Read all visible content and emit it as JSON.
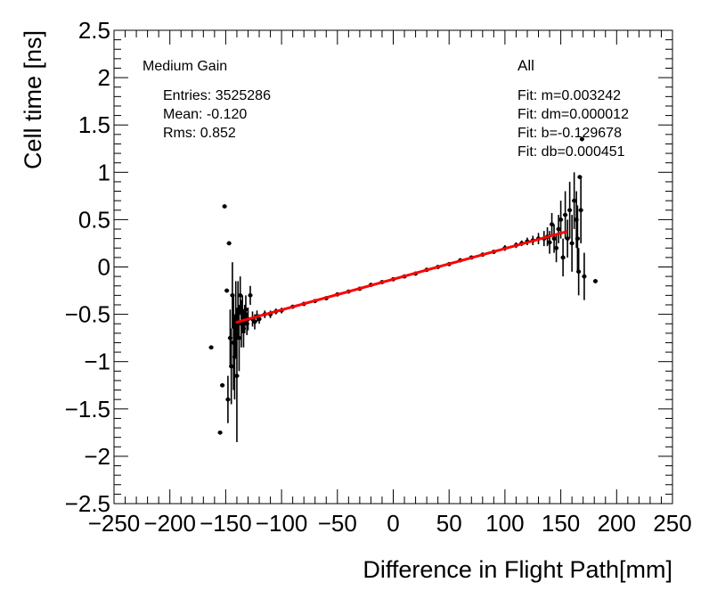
{
  "chart_data": {
    "type": "scatter",
    "title": "",
    "xlabel": "Difference in Flight Path[mm]",
    "ylabel": "Cell time [ns]",
    "xlim": [
      -250,
      250
    ],
    "ylim": [
      -2.5,
      2.5
    ],
    "xticks": [
      -250,
      -200,
      -150,
      -100,
      -50,
      0,
      50,
      100,
      150,
      200,
      250
    ],
    "yticks": [
      -2.5,
      -2,
      -1.5,
      -1,
      -0.5,
      0,
      0.5,
      1,
      1.5,
      2,
      2.5
    ],
    "xtick_labels": [
      "−250",
      "−200",
      "−150",
      "−100",
      "−50",
      "0",
      "50",
      "100",
      "150",
      "200",
      "250"
    ],
    "ytick_labels": [
      "−2.5",
      "−2",
      "−1.5",
      "−1",
      "−0.5",
      "0",
      "0.5",
      "1",
      "1.5",
      "2",
      "2.5"
    ],
    "gain_label": "Medium Gain",
    "category_label": "All",
    "stats": {
      "entries": "Entries: 3525286",
      "mean": "Mean: -0.120",
      "rms": "Rms: 0.852"
    },
    "fit_text": {
      "m": "Fit: m=0.003242",
      "dm": "Fit: dm=0.000012",
      "b": "Fit: b=-0.129678",
      "db": "Fit: db=0.000451"
    },
    "fit": {
      "slope": 0.003242,
      "intercept": -0.129678,
      "x_range": [
        -140,
        155
      ],
      "color": "#ff0000"
    },
    "series": [
      {
        "name": "profile",
        "color": "#000000",
        "points": [
          {
            "x": -163,
            "y": -0.85,
            "err": 0.0
          },
          {
            "x": -155,
            "y": -1.75,
            "err": 0.0
          },
          {
            "x": -153,
            "y": -1.25,
            "err": 0.0
          },
          {
            "x": -151,
            "y": 0.64,
            "err": 0.0
          },
          {
            "x": -149,
            "y": -0.25,
            "err": 0.0
          },
          {
            "x": -148,
            "y": -1.4,
            "err": 0.25
          },
          {
            "x": -147,
            "y": 0.25,
            "err": 0.0
          },
          {
            "x": -146,
            "y": -0.75,
            "err": 0.3
          },
          {
            "x": -145,
            "y": -1.05,
            "err": 0.4
          },
          {
            "x": -144,
            "y": -0.3,
            "err": 0.35
          },
          {
            "x": -143,
            "y": -0.8,
            "err": 0.5
          },
          {
            "x": -142,
            "y": -0.95,
            "err": 0.45
          },
          {
            "x": -141,
            "y": -0.55,
            "err": 0.4
          },
          {
            "x": -140,
            "y": -1.15,
            "err": 0.7
          },
          {
            "x": -139,
            "y": -0.45,
            "err": 0.3
          },
          {
            "x": -138,
            "y": -0.75,
            "err": 0.35
          },
          {
            "x": -137,
            "y": -0.3,
            "err": 0.2
          },
          {
            "x": -136,
            "y": -0.6,
            "err": 0.25
          },
          {
            "x": -135,
            "y": -0.5,
            "err": 0.2
          },
          {
            "x": -134,
            "y": -0.65,
            "err": 0.2
          },
          {
            "x": -133,
            "y": -0.55,
            "err": 0.15
          },
          {
            "x": -132,
            "y": -0.45,
            "err": 0.15
          },
          {
            "x": -131,
            "y": -0.6,
            "err": 0.12
          },
          {
            "x": -130,
            "y": -0.55,
            "err": 0.12
          },
          {
            "x": -128,
            "y": -0.3,
            "err": 0.1
          },
          {
            "x": -126,
            "y": -0.55,
            "err": 0.08
          },
          {
            "x": -124,
            "y": -0.58,
            "err": 0.08
          },
          {
            "x": -122,
            "y": -0.52,
            "err": 0.06
          },
          {
            "x": -120,
            "y": -0.55,
            "err": 0.05
          },
          {
            "x": -115,
            "y": -0.5,
            "err": 0.04
          },
          {
            "x": -110,
            "y": -0.5,
            "err": 0.04
          },
          {
            "x": -105,
            "y": -0.47,
            "err": 0.03
          },
          {
            "x": -100,
            "y": -0.46,
            "err": 0.03
          },
          {
            "x": -90,
            "y": -0.42,
            "err": 0.02
          },
          {
            "x": -80,
            "y": -0.39,
            "err": 0.02
          },
          {
            "x": -70,
            "y": -0.36,
            "err": 0.02
          },
          {
            "x": -60,
            "y": -0.33,
            "err": 0.02
          },
          {
            "x": -50,
            "y": -0.29,
            "err": 0.01
          },
          {
            "x": -40,
            "y": -0.26,
            "err": 0.01
          },
          {
            "x": -30,
            "y": -0.23,
            "err": 0.01
          },
          {
            "x": -20,
            "y": -0.19,
            "err": 0.01
          },
          {
            "x": -10,
            "y": -0.16,
            "err": 0.01
          },
          {
            "x": 0,
            "y": -0.13,
            "err": 0.01
          },
          {
            "x": 10,
            "y": -0.1,
            "err": 0.01
          },
          {
            "x": 20,
            "y": -0.07,
            "err": 0.01
          },
          {
            "x": 30,
            "y": -0.03,
            "err": 0.01
          },
          {
            "x": 40,
            "y": 0.0,
            "err": 0.01
          },
          {
            "x": 50,
            "y": 0.03,
            "err": 0.01
          },
          {
            "x": 60,
            "y": 0.07,
            "err": 0.02
          },
          {
            "x": 70,
            "y": 0.1,
            "err": 0.02
          },
          {
            "x": 80,
            "y": 0.13,
            "err": 0.02
          },
          {
            "x": 90,
            "y": 0.16,
            "err": 0.02
          },
          {
            "x": 100,
            "y": 0.2,
            "err": 0.03
          },
          {
            "x": 110,
            "y": 0.23,
            "err": 0.03
          },
          {
            "x": 115,
            "y": 0.25,
            "err": 0.03
          },
          {
            "x": 120,
            "y": 0.27,
            "err": 0.04
          },
          {
            "x": 125,
            "y": 0.28,
            "err": 0.05
          },
          {
            "x": 130,
            "y": 0.3,
            "err": 0.06
          },
          {
            "x": 135,
            "y": 0.3,
            "err": 0.08
          },
          {
            "x": 138,
            "y": 0.32,
            "err": 0.1
          },
          {
            "x": 140,
            "y": 0.26,
            "err": 0.12
          },
          {
            "x": 142,
            "y": 0.45,
            "err": 0.12
          },
          {
            "x": 144,
            "y": 0.3,
            "err": 0.15
          },
          {
            "x": 146,
            "y": 0.2,
            "err": 0.15
          },
          {
            "x": 148,
            "y": 0.4,
            "err": 0.15
          },
          {
            "x": 150,
            "y": 0.5,
            "err": 0.2
          },
          {
            "x": 152,
            "y": 0.1,
            "err": 0.2
          },
          {
            "x": 154,
            "y": 0.55,
            "err": 0.25
          },
          {
            "x": 156,
            "y": 0.3,
            "err": 0.2
          },
          {
            "x": 158,
            "y": 0.6,
            "err": 0.3
          },
          {
            "x": 160,
            "y": 0.25,
            "err": 0.3
          },
          {
            "x": 162,
            "y": 0.7,
            "err": 0.3
          },
          {
            "x": 164,
            "y": 0.5,
            "err": 0.3
          },
          {
            "x": 165,
            "y": 0.3,
            "err": 0.35
          },
          {
            "x": 166,
            "y": -0.05,
            "err": 0.25
          },
          {
            "x": 167,
            "y": 0.95,
            "err": 0.0
          },
          {
            "x": 168,
            "y": 0.6,
            "err": 0.35
          },
          {
            "x": 169,
            "y": 1.35,
            "err": 0.0
          },
          {
            "x": 171,
            "y": -0.1,
            "err": 0.25
          },
          {
            "x": 181,
            "y": -0.15,
            "err": 0.0
          }
        ]
      }
    ]
  }
}
